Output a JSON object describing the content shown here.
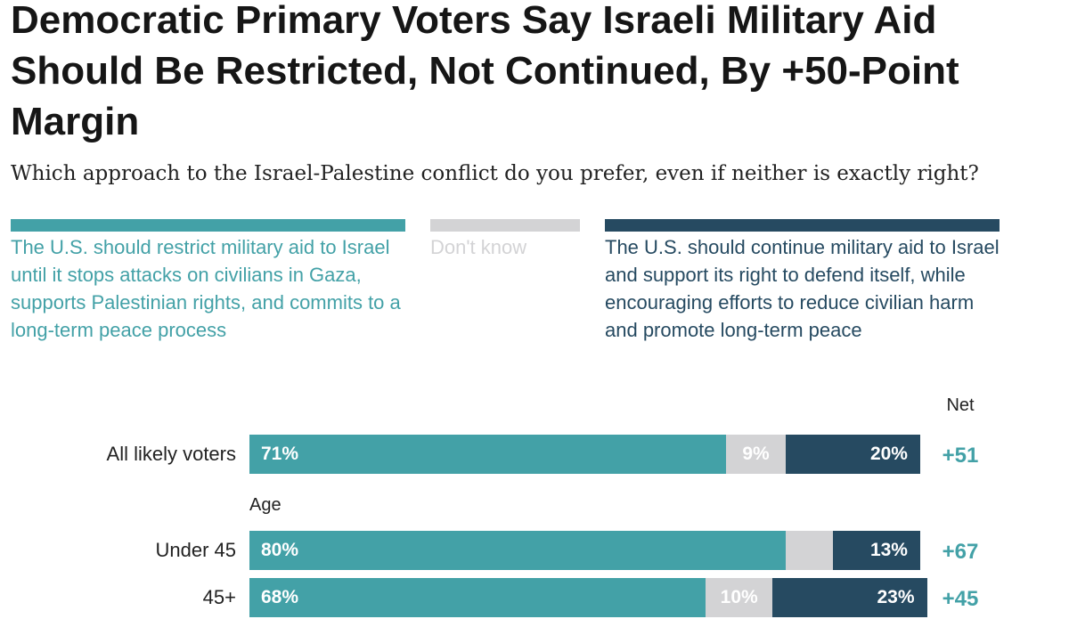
{
  "colors": {
    "restrict": "#43a1a7",
    "dont_know": "#d3d3d5",
    "continue": "#264a61",
    "title": "#161616"
  },
  "chart_data": {
    "type": "bar",
    "orientation": "horizontal-stacked",
    "title": "Democratic Primary Voters Say Israeli Military Aid Should Be Restricted, Not Continued, By +50-Point Margin",
    "subtitle": "Which approach to the Israel-Palestine conflict do you prefer, even if neither is exactly right?",
    "legend": [
      {
        "key": "restrict",
        "label": "The U.S. should restrict military aid to Israel until it stops attacks on civilians in Gaza, supports Palestinian rights, and commits to a long-term peace process"
      },
      {
        "key": "dont_know",
        "label": "Don't know"
      },
      {
        "key": "continue",
        "label": "The U.S. should continue military aid to Israel and support its right to defend itself, while encouraging efforts to reduce civilian harm and promote long-term peace"
      }
    ],
    "net_header": "Net",
    "section_label": "Age",
    "xlim": [
      0,
      100
    ],
    "rows": [
      {
        "label": "All likely voters",
        "restrict": 71,
        "dont_know": 9,
        "continue": 20,
        "restrict_text": "71%",
        "dont_know_text": "9%",
        "continue_text": "20%",
        "net": "+51"
      },
      {
        "label": "Under 45",
        "restrict": 80,
        "dont_know": 7,
        "continue": 13,
        "restrict_text": "80%",
        "dont_know_text": "",
        "continue_text": "13%",
        "net": "+67"
      },
      {
        "label": "45+",
        "restrict": 68,
        "dont_know": 10,
        "continue": 23,
        "restrict_text": "68%",
        "dont_know_text": "10%",
        "continue_text": "23%",
        "net": "+45"
      }
    ]
  }
}
